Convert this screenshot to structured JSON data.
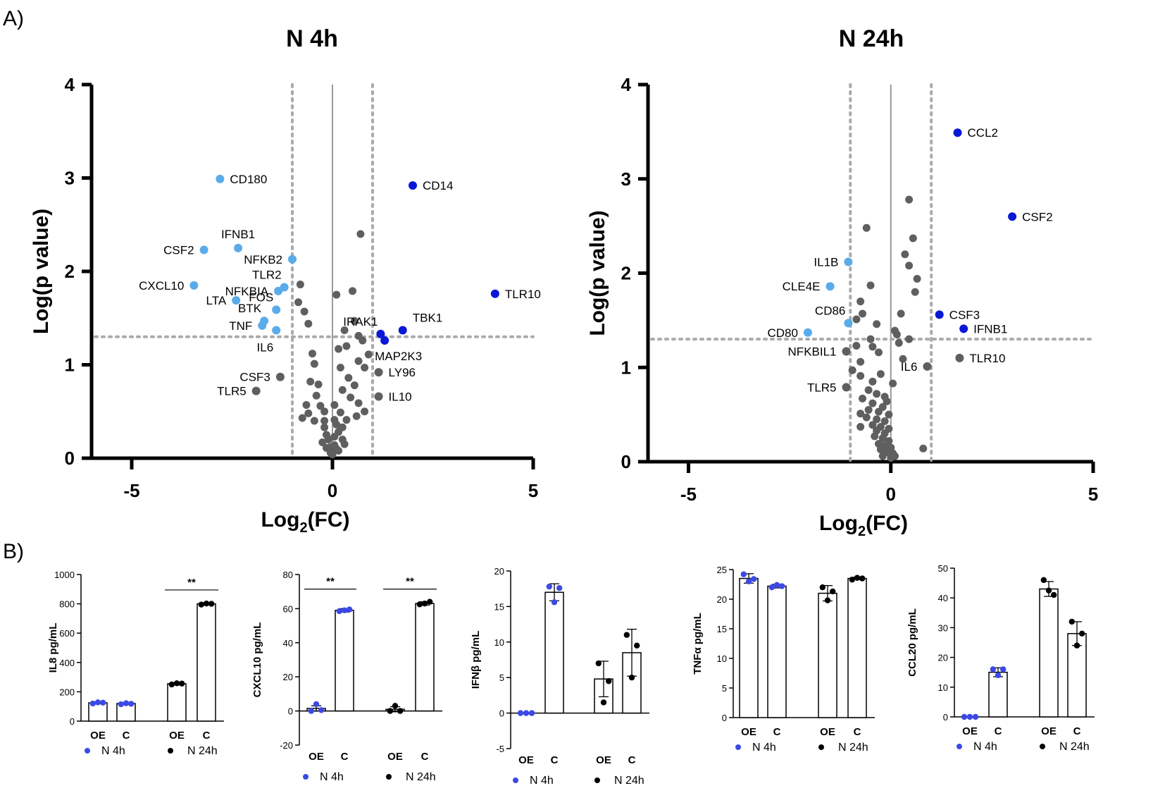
{
  "panel_labels": {
    "a": "A)",
    "b": "B)"
  },
  "colors": {
    "up": "#0a17d6",
    "down": "#5aabea",
    "ns": "#5f5f5f",
    "n4h": "#3d49e6",
    "n24h": "#000000",
    "threshold": "#aaaaaa"
  },
  "chart_data": [
    {
      "id": "volcano-n4h",
      "type": "scatter",
      "title": "N 4h",
      "xlabel_main": "Log",
      "xlabel_sub": "2",
      "xlabel_tail": "(FC)",
      "ylabel": "Log(p value)",
      "xlim": [
        -6,
        5
      ],
      "ylim": [
        0,
        4
      ],
      "xticks": [
        -5,
        0,
        5
      ],
      "yticks": [
        0,
        1,
        2,
        3,
        4
      ],
      "fc_threshold": [
        -1,
        1
      ],
      "p_threshold": 1.3,
      "labeled_points": [
        {
          "gene": "CD180",
          "x": -2.8,
          "y": 2.99,
          "cat": "down",
          "label_pos": "right"
        },
        {
          "gene": "CD14",
          "x": 2.0,
          "y": 2.92,
          "cat": "up",
          "label_pos": "right"
        },
        {
          "gene": "CSF2",
          "x": -3.2,
          "y": 2.23,
          "cat": "down",
          "label_pos": "left"
        },
        {
          "gene": "IFNB1",
          "x": -2.35,
          "y": 2.25,
          "cat": "down",
          "label_pos": "above"
        },
        {
          "gene": "NFKB2",
          "x": -1.0,
          "y": 2.13,
          "cat": "down",
          "label_pos": "left"
        },
        {
          "gene": "CXCL10",
          "x": -3.45,
          "y": 1.85,
          "cat": "down",
          "label_pos": "left"
        },
        {
          "gene": "TLR2",
          "x": -1.2,
          "y": 1.83,
          "cat": "down",
          "label_pos": "aboveleft"
        },
        {
          "gene": "NFKBIA",
          "x": -1.35,
          "y": 1.79,
          "cat": "down",
          "label_pos": "left"
        },
        {
          "gene": "LTA",
          "x": -2.4,
          "y": 1.69,
          "cat": "down",
          "label_pos": "left"
        },
        {
          "gene": "FOS",
          "x": -1.4,
          "y": 1.59,
          "cat": "down",
          "label_pos": "aboveleft"
        },
        {
          "gene": "BTK",
          "x": -1.7,
          "y": 1.47,
          "cat": "down",
          "label_pos": "aboveleft"
        },
        {
          "gene": "TNF",
          "x": -1.75,
          "y": 1.42,
          "cat": "down",
          "label_pos": "left"
        },
        {
          "gene": "IL6",
          "x": -1.4,
          "y": 1.37,
          "cat": "down",
          "label_pos": "belowleft"
        },
        {
          "gene": "TLR10",
          "x": 4.05,
          "y": 1.76,
          "cat": "up",
          "label_pos": "right"
        },
        {
          "gene": "IRAK1",
          "x": 1.2,
          "y": 1.33,
          "cat": "up",
          "label_pos": "aboveleft"
        },
        {
          "gene": "TBK1",
          "x": 1.75,
          "y": 1.37,
          "cat": "up",
          "label_pos": "aboveright"
        },
        {
          "gene": "MAP2K3",
          "x": 1.3,
          "y": 1.26,
          "cat": "up",
          "label_pos": "belowright"
        },
        {
          "gene": "LY96",
          "x": 1.15,
          "y": 0.92,
          "cat": "ns",
          "label_pos": "right"
        },
        {
          "gene": "IL10",
          "x": 1.15,
          "y": 0.66,
          "cat": "ns",
          "label_pos": "right"
        },
        {
          "gene": "CSF3",
          "x": -1.3,
          "y": 0.87,
          "cat": "ns",
          "label_pos": "left"
        },
        {
          "gene": "TLR5",
          "x": -1.9,
          "y": 0.72,
          "cat": "ns",
          "label_pos": "left"
        }
      ],
      "other_points": [
        [
          0.7,
          2.4
        ],
        [
          -0.8,
          1.86
        ],
        [
          0.5,
          1.79
        ],
        [
          0.1,
          1.75
        ],
        [
          -0.85,
          1.67
        ],
        [
          -0.7,
          1.57
        ],
        [
          0.55,
          1.47
        ],
        [
          -0.6,
          1.44
        ],
        [
          0.3,
          1.37
        ],
        [
          0.65,
          1.31
        ],
        [
          0.75,
          1.26
        ],
        [
          0.35,
          1.2
        ],
        [
          0.15,
          1.17
        ],
        [
          -0.5,
          1.12
        ],
        [
          0.9,
          1.11
        ],
        [
          0.65,
          1.04
        ],
        [
          -0.45,
          1.01
        ],
        [
          0.2,
          0.97
        ],
        [
          0.8,
          0.97
        ],
        [
          0.4,
          0.86
        ],
        [
          -0.55,
          0.82
        ],
        [
          -0.35,
          0.79
        ],
        [
          0.55,
          0.78
        ],
        [
          0.25,
          0.73
        ],
        [
          -0.4,
          0.67
        ],
        [
          0.45,
          0.65
        ],
        [
          0.65,
          0.59
        ],
        [
          0.05,
          0.57
        ],
        [
          -0.65,
          0.57
        ],
        [
          -0.3,
          0.56
        ],
        [
          -0.2,
          0.5
        ],
        [
          0.2,
          0.49
        ],
        [
          0.8,
          0.5
        ],
        [
          -0.6,
          0.48
        ],
        [
          0.6,
          0.45
        ],
        [
          -0.75,
          0.43
        ],
        [
          0.35,
          0.41
        ],
        [
          0.05,
          0.41
        ],
        [
          -0.2,
          0.4
        ],
        [
          -0.45,
          0.4
        ],
        [
          0.1,
          0.36
        ],
        [
          0.25,
          0.33
        ],
        [
          -0.2,
          0.33
        ],
        [
          0.15,
          0.28
        ],
        [
          -0.15,
          0.25
        ],
        [
          0.05,
          0.23
        ],
        [
          -0.1,
          0.2
        ],
        [
          0.25,
          0.2
        ],
        [
          -0.25,
          0.17
        ],
        [
          0.3,
          0.15
        ],
        [
          0.05,
          0.14
        ],
        [
          -0.05,
          0.12
        ],
        [
          -0.15,
          0.11
        ],
        [
          0.1,
          0.1
        ],
        [
          0.15,
          0.08
        ],
        [
          -0.05,
          0.06
        ],
        [
          0.0,
          0.04
        ]
      ]
    },
    {
      "id": "volcano-n24h",
      "type": "scatter",
      "title": "N 24h",
      "xlabel_main": "Log",
      "xlabel_sub": "2",
      "xlabel_tail": "(FC)",
      "ylabel": "Log(p value)",
      "xlim": [
        -6,
        5
      ],
      "ylim": [
        0,
        4
      ],
      "xticks": [
        -5,
        0,
        5
      ],
      "yticks": [
        0,
        1,
        2,
        3,
        4
      ],
      "fc_threshold": [
        -1,
        1
      ],
      "p_threshold": 1.3,
      "labeled_points": [
        {
          "gene": "CCL2",
          "x": 1.65,
          "y": 3.49,
          "cat": "up",
          "label_pos": "right"
        },
        {
          "gene": "CSF2",
          "x": 3.0,
          "y": 2.6,
          "cat": "up",
          "label_pos": "right"
        },
        {
          "gene": "IL1B",
          "x": -1.05,
          "y": 2.12,
          "cat": "down",
          "label_pos": "left"
        },
        {
          "gene": "CLE4E",
          "x": -1.5,
          "y": 1.86,
          "cat": "down",
          "label_pos": "left"
        },
        {
          "gene": "CD86",
          "x": -1.05,
          "y": 1.47,
          "cat": "down",
          "label_pos": "aboveleft"
        },
        {
          "gene": "CD80",
          "x": -2.05,
          "y": 1.37,
          "cat": "down",
          "label_pos": "left"
        },
        {
          "gene": "CSF3",
          "x": 1.2,
          "y": 1.56,
          "cat": "up",
          "label_pos": "right"
        },
        {
          "gene": "IFNB1",
          "x": 1.8,
          "y": 1.41,
          "cat": "up",
          "label_pos": "right"
        },
        {
          "gene": "TLR10",
          "x": 1.7,
          "y": 1.1,
          "cat": "ns",
          "label_pos": "right"
        },
        {
          "gene": "IL6",
          "x": 0.9,
          "y": 1.01,
          "cat": "ns",
          "label_pos": "left"
        },
        {
          "gene": "NFKBIL1",
          "x": -1.1,
          "y": 1.17,
          "cat": "ns",
          "label_pos": "left"
        },
        {
          "gene": "TLR5",
          "x": -1.1,
          "y": 0.79,
          "cat": "ns",
          "label_pos": "left"
        }
      ],
      "other_points": [
        [
          0.45,
          2.78
        ],
        [
          -0.6,
          2.48
        ],
        [
          0.55,
          2.37
        ],
        [
          0.35,
          2.2
        ],
        [
          0.45,
          2.08
        ],
        [
          0.65,
          1.94
        ],
        [
          -0.5,
          1.87
        ],
        [
          0.6,
          1.8
        ],
        [
          -0.75,
          1.7
        ],
        [
          0.25,
          1.57
        ],
        [
          -0.7,
          1.57
        ],
        [
          -0.85,
          1.51
        ],
        [
          -0.35,
          1.46
        ],
        [
          0.1,
          1.39
        ],
        [
          0.15,
          1.35
        ],
        [
          -0.5,
          1.3
        ],
        [
          0.45,
          1.3
        ],
        [
          0.2,
          1.26
        ],
        [
          -0.85,
          1.23
        ],
        [
          -0.45,
          1.22
        ],
        [
          -0.3,
          1.16
        ],
        [
          0.3,
          1.09
        ],
        [
          -0.75,
          1.06
        ],
        [
          -0.95,
          0.97
        ],
        [
          -0.25,
          0.93
        ],
        [
          -0.75,
          0.91
        ],
        [
          -0.45,
          0.85
        ],
        [
          0.05,
          0.83
        ],
        [
          -0.55,
          0.76
        ],
        [
          -0.35,
          0.72
        ],
        [
          -0.15,
          0.69
        ],
        [
          -0.7,
          0.67
        ],
        [
          -0.1,
          0.64
        ],
        [
          -0.45,
          0.62
        ],
        [
          -0.2,
          0.58
        ],
        [
          -0.55,
          0.55
        ],
        [
          -0.3,
          0.53
        ],
        [
          -0.75,
          0.51
        ],
        [
          -0.05,
          0.5
        ],
        [
          -0.6,
          0.47
        ],
        [
          -0.35,
          0.45
        ],
        [
          -0.15,
          0.43
        ],
        [
          -0.45,
          0.39
        ],
        [
          -0.25,
          0.37
        ],
        [
          -0.05,
          0.35
        ],
        [
          -0.75,
          0.37
        ],
        [
          -0.35,
          0.33
        ],
        [
          -0.15,
          0.3
        ],
        [
          -0.4,
          0.27
        ],
        [
          -0.2,
          0.25
        ],
        [
          -0.05,
          0.22
        ],
        [
          -0.3,
          0.19
        ],
        [
          -0.15,
          0.17
        ],
        [
          0.0,
          0.15
        ],
        [
          -0.25,
          0.13
        ],
        [
          0.8,
          0.14
        ],
        [
          -0.1,
          0.1
        ],
        [
          0.05,
          0.09
        ],
        [
          -0.2,
          0.06
        ],
        [
          0.0,
          0.04
        ],
        [
          0.1,
          0.06
        ]
      ]
    },
    {
      "id": "bar-il8",
      "type": "bar",
      "ylabel": "IL8 pg/mL",
      "ylim": [
        0,
        1000
      ],
      "yticks": [
        0,
        200,
        400,
        600,
        800,
        1000
      ],
      "categories": [
        "OE",
        "C",
        "OE",
        "C"
      ],
      "groups": [
        "n4h",
        "n4h",
        "n24h",
        "n24h"
      ],
      "values": [
        125,
        120,
        255,
        800
      ],
      "errors": [
        6,
        6,
        8,
        8
      ],
      "points": [
        [
          120,
          128,
          126
        ],
        [
          115,
          122,
          118
        ],
        [
          250,
          258,
          256
        ],
        [
          795,
          802,
          800
        ]
      ],
      "significance": [
        {
          "from": 2,
          "to": 3,
          "label": "**"
        }
      ],
      "legend": [
        "N 4h",
        "N 24h"
      ]
    },
    {
      "id": "bar-cxcl10",
      "type": "bar",
      "ylabel": "CXCL10 pg/mL",
      "ylim": [
        -20,
        80
      ],
      "yticks": [
        -20,
        0,
        20,
        40,
        60,
        80
      ],
      "categories": [
        "OE",
        "C",
        "OE",
        "C"
      ],
      "groups": [
        "n4h",
        "n4h",
        "n24h",
        "n24h"
      ],
      "values": [
        1.5,
        59,
        1,
        63
      ],
      "errors": [
        1.5,
        1,
        1.5,
        1
      ],
      "points": [
        [
          0,
          4,
          0.5
        ],
        [
          58.5,
          59,
          59.5
        ],
        [
          0,
          3,
          0
        ],
        [
          62.5,
          63,
          64
        ]
      ],
      "significance": [
        {
          "from": 0,
          "to": 1,
          "label": "**"
        },
        {
          "from": 2,
          "to": 3,
          "label": "**"
        }
      ],
      "legend": [
        "N 4h",
        "N 24h"
      ]
    },
    {
      "id": "bar-ifnb",
      "type": "bar",
      "ylabel": "IFNβ pg/mL",
      "ylim": [
        -5,
        20
      ],
      "yticks": [
        -5,
        0,
        5,
        10,
        15,
        20
      ],
      "categories": [
        "OE",
        "C",
        "OE",
        "C"
      ],
      "groups": [
        "n4h",
        "n4h",
        "n24h",
        "n24h"
      ],
      "values": [
        0,
        17,
        4.8,
        8.5
      ],
      "errors": [
        0.1,
        1.2,
        2.5,
        3.3
      ],
      "points": [
        [
          0,
          0,
          0
        ],
        [
          17.8,
          15.6,
          17.6
        ],
        [
          7,
          1.5,
          4.5
        ],
        [
          11,
          5,
          9.5
        ]
      ],
      "significance": [],
      "legend": [
        "N 4h",
        "N 24h"
      ]
    },
    {
      "id": "bar-tnfa",
      "type": "bar",
      "ylabel": "TNFα pg/mL",
      "ylim": [
        0,
        25
      ],
      "yticks": [
        0,
        5,
        10,
        15,
        20,
        25
      ],
      "categories": [
        "OE",
        "C",
        "OE",
        "C"
      ],
      "groups": [
        "n4h",
        "n4h",
        "n24h",
        "n24h"
      ],
      "values": [
        23.5,
        22.2,
        21,
        23.5
      ],
      "errors": [
        0.8,
        0.3,
        1.3,
        0.2
      ],
      "points": [
        [
          24.2,
          23,
          23.4
        ],
        [
          22,
          22.4,
          22.2
        ],
        [
          22,
          19.8,
          21.3
        ],
        [
          23.3,
          23.6,
          23.5
        ]
      ],
      "significance": [],
      "legend": [
        "N 4h",
        "N 24h"
      ]
    },
    {
      "id": "bar-ccl20",
      "type": "bar",
      "ylabel": "CCL20 pg/mL",
      "ylim": [
        0,
        50
      ],
      "yticks": [
        0,
        10,
        20,
        30,
        40,
        50
      ],
      "categories": [
        "OE",
        "C",
        "OE",
        "C"
      ],
      "groups": [
        "n4h",
        "n4h",
        "n24h",
        "n24h"
      ],
      "values": [
        0,
        15,
        43,
        28
      ],
      "errors": [
        0,
        1.5,
        2.5,
        4
      ],
      "points": [
        [
          0,
          0,
          0
        ],
        [
          16,
          14,
          16
        ],
        [
          46,
          42.5,
          41
        ],
        [
          32,
          24,
          28
        ]
      ],
      "significance": [],
      "legend": [
        "N 4h",
        "N 24h"
      ]
    }
  ]
}
